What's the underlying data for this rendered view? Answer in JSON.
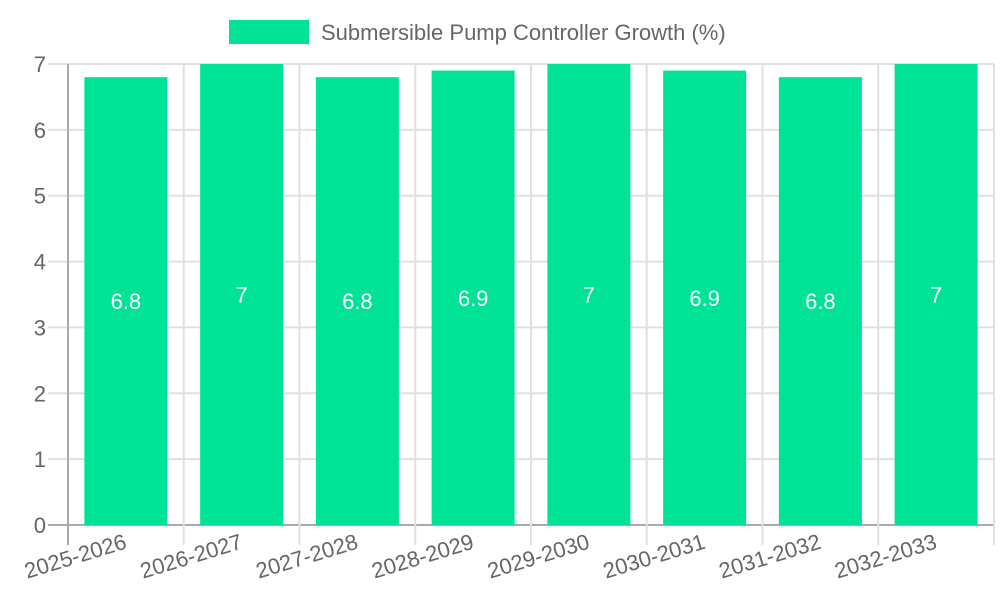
{
  "colors": {
    "bar": "#00e396",
    "grid": "#e0e0e0",
    "axis": "#aaaaaa",
    "text": "#666666",
    "label": "#ffffff"
  },
  "legend": {
    "label": "Submersible Pump Controller Growth (%)"
  },
  "chart_data": {
    "type": "bar",
    "title": "",
    "xlabel": "",
    "ylabel": "",
    "categories": [
      "2025-2026",
      "2026-2027",
      "2027-2028",
      "2028-2029",
      "2029-2030",
      "2030-2031",
      "2031-2032",
      "2032-2033"
    ],
    "series": [
      {
        "name": "Submersible Pump Controller Growth (%)",
        "values": [
          6.8,
          7,
          6.8,
          6.9,
          7,
          6.9,
          6.8,
          7
        ]
      }
    ],
    "data_labels": [
      "6.8",
      "7",
      "6.8",
      "6.9",
      "7",
      "6.9",
      "6.8",
      "7"
    ],
    "ylim": [
      0,
      7
    ],
    "yticks": [
      0,
      1,
      2,
      3,
      4,
      5,
      6,
      7
    ],
    "grid": true,
    "legend_position": "top"
  }
}
